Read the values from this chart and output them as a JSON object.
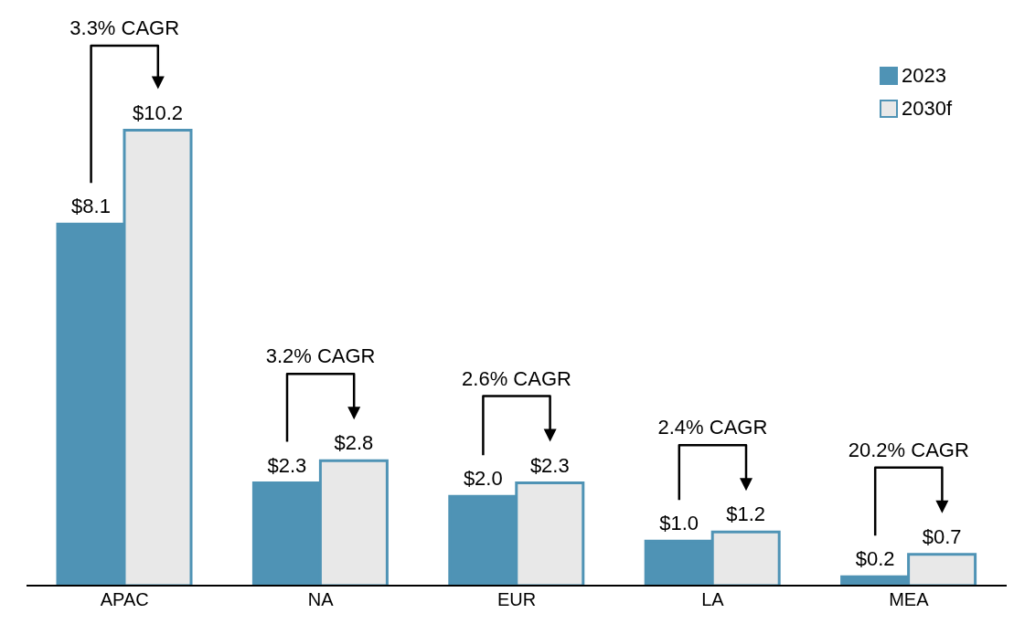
{
  "chart_data": {
    "type": "bar",
    "categories": [
      "APAC",
      "NA",
      "EUR",
      "LA",
      "MEA"
    ],
    "series": [
      {
        "name": "2023",
        "color": "#4f93b5",
        "values": [
          8.1,
          2.3,
          2.0,
          1.0,
          0.2
        ],
        "value_labels": [
          "$8.1",
          "$2.3",
          "$2.0",
          "$1.0",
          "$0.2"
        ]
      },
      {
        "name": "2030f",
        "color": "#e8e8e8",
        "values": [
          10.2,
          2.8,
          2.3,
          1.2,
          0.7
        ],
        "value_labels": [
          "$10.2",
          "$2.8",
          "$2.3",
          "$1.2",
          "$0.7"
        ]
      }
    ],
    "annotations": [
      "3.3% CAGR",
      "3.2% CAGR",
      "2.6% CAGR",
      "2.4% CAGR",
      "20.2% CAGR"
    ],
    "legend": "top right",
    "grid": false
  }
}
